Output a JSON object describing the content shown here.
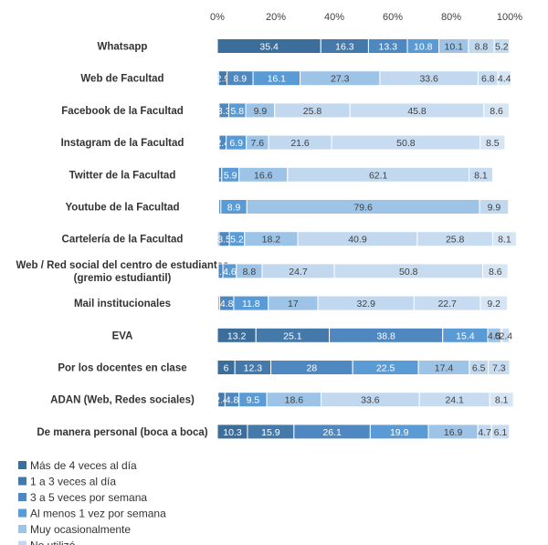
{
  "chart_data": {
    "type": "bar",
    "orientation": "horizontal",
    "stacked": "percent",
    "xlim": [
      0,
      100
    ],
    "x_ticks": [
      "0%",
      "20%",
      "40%",
      "60%",
      "80%",
      "100%"
    ],
    "grid": false,
    "legend_position": "bottom-left",
    "categories": [
      "Whatsapp",
      "Web de Facultad",
      "Facebook de la Facultad",
      "Instagram de la Facultad",
      "Twitter de la Facultad",
      "Youtube de la Facultad",
      "Cartelería de la Facultad",
      [
        "Web / Red social del centro de estudiantes",
        "(gremio estudiantil)"
      ],
      "Mail institucionales",
      "EVA",
      "Por los docentes en clase",
      "ADAN (Web, Redes sociales)",
      "De manera personal (boca a boca)"
    ],
    "series": [
      {
        "name": "Más de 4 veces al día",
        "color": "#3c6e9c",
        "values": [
          35.4,
          0.4,
          0.3,
          0.3,
          0.1,
          0.2,
          0.1,
          0.1,
          0.3,
          13.2,
          6,
          0.2,
          10.3
        ]
      },
      {
        "name": "1 a 3 veces al día",
        "color": "#4579aa",
        "values": [
          16.3,
          2.9,
          0.3,
          0.3,
          0.3,
          0.3,
          0.5,
          0.2,
          0.5,
          25.1,
          12.3,
          2.4,
          15.9
        ]
      },
      {
        "name": "3 a 5 veces por semana",
        "color": "#4f88c0",
        "values": [
          13.3,
          8.9,
          3.3,
          2.4,
          1.1,
          0.7,
          3.5,
          1.6,
          4.8,
          38.8,
          28,
          4.8,
          26.1
        ]
      },
      {
        "name": "Al menos 1 vez por semana",
        "color": "#5b9bd5",
        "values": [
          10.8,
          16.1,
          5.8,
          6.9,
          5.9,
          8.9,
          5.2,
          4.6,
          11.8,
          15.4,
          22.5,
          9.5,
          19.9
        ]
      },
      {
        "name": "Muy ocasionalmente",
        "color": "#9dc3e6",
        "values": [
          10.1,
          27.3,
          9.9,
          7.6,
          16.6,
          79.6,
          18.2,
          8.8,
          17,
          4.5,
          17.4,
          18.6,
          16.9
        ]
      },
      {
        "name": "No utilizó",
        "color": "#c2d8ef",
        "values": [
          8.8,
          33.6,
          25.8,
          21.6,
          62.1,
          9.9,
          40.9,
          24.7,
          32.9,
          0.5,
          6.5,
          33.6,
          4.7
        ]
      },
      {
        "name": "",
        "color": "#c7dcf0",
        "values": [
          5.2,
          6.8,
          45.8,
          50.8,
          8.1,
          null,
          25.8,
          50.8,
          22.7,
          2.4,
          7.3,
          24.1,
          6.1
        ]
      },
      {
        "name": "",
        "color": "#d6e5f4",
        "values": [
          null,
          4.4,
          8.6,
          8.5,
          null,
          null,
          8.1,
          8.6,
          9.2,
          null,
          null,
          8.1,
          null
        ]
      }
    ],
    "labels": [
      [
        "35.4",
        "16.3",
        "13.3",
        "10.8",
        "10.1",
        "8.8",
        "5.2",
        ""
      ],
      [
        "",
        "2.9",
        "8.9",
        "16.1",
        "27.3",
        "33.6",
        "6.8",
        "4.4"
      ],
      [
        "",
        "",
        "3.3",
        "5.8",
        "9.9",
        "25.8",
        "45.8",
        "8.6"
      ],
      [
        "",
        "",
        "2.4",
        "6.9",
        "7.6",
        "21.6",
        "50.8",
        "8.5"
      ],
      [
        "",
        "",
        "1.1",
        "5.9",
        "16.6",
        "62.1",
        "8.1",
        ""
      ],
      [
        "",
        "",
        "",
        "8.9",
        "79.6",
        "9.9",
        "",
        ""
      ],
      [
        "",
        "",
        "3.5",
        "5.2",
        "18.2",
        "40.9",
        "25.8",
        "8.1"
      ],
      [
        "",
        "",
        "1.6",
        "4.6",
        "8.8",
        "24.7",
        "50.8",
        "8.6"
      ],
      [
        "",
        "",
        "4.8",
        "11.8",
        "17",
        "32.9",
        "22.7",
        "9.2"
      ],
      [
        "13.2",
        "25.1",
        "38.8",
        "15.4",
        "4.5",
        "0.5",
        "2.4",
        ""
      ],
      [
        "6",
        "12.3",
        "28",
        "22.5",
        "17.4",
        "6.5",
        "7.3",
        ""
      ],
      [
        "",
        "2.4",
        "4.8",
        "9.5",
        "18.6",
        "33.6",
        "24.1",
        "8.1"
      ],
      [
        "10.3",
        "15.9",
        "26.1",
        "19.9",
        "16.9",
        "4.7",
        "6.1",
        ""
      ]
    ]
  }
}
